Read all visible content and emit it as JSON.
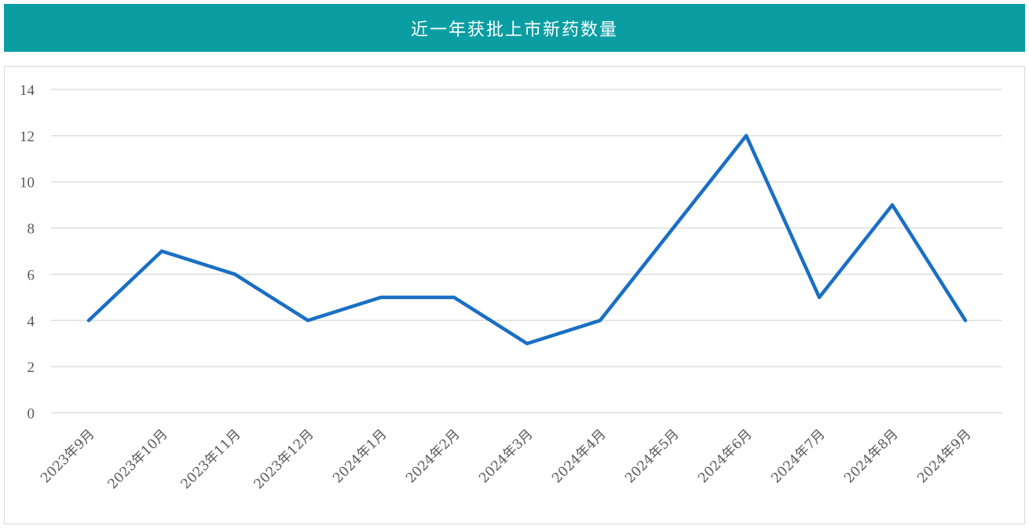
{
  "header": {
    "title": "近一年获批上市新药数量"
  },
  "colors": {
    "header_bg": "#0a9ea3",
    "line": "#1a6fc4",
    "grid": "#d9d9d9"
  },
  "chart_data": {
    "type": "line",
    "title": "近一年获批上市新药数量",
    "xlabel": "",
    "ylabel": "",
    "categories": [
      "2023年9月",
      "2023年10月",
      "2023年11月",
      "2023年12月",
      "2024年1月",
      "2024年2月",
      "2024年3月",
      "2024年4月",
      "2024年5月",
      "2024年6月",
      "2024年7月",
      "2024年8月",
      "2024年9月"
    ],
    "values": [
      4,
      7,
      6,
      4,
      5,
      5,
      3,
      4,
      8,
      12,
      5,
      9,
      4
    ],
    "ylim": [
      0,
      14
    ],
    "yticks": [
      0,
      2,
      4,
      6,
      8,
      10,
      12,
      14
    ],
    "grid": true,
    "legend": "none"
  }
}
